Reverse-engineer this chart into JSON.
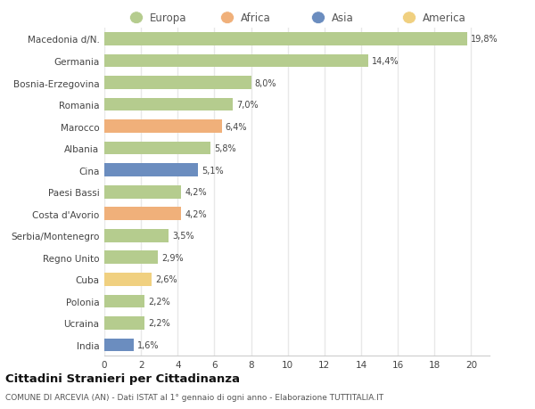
{
  "categories": [
    "Macedonia d/N.",
    "Germania",
    "Bosnia-Erzegovina",
    "Romania",
    "Marocco",
    "Albania",
    "Cina",
    "Paesi Bassi",
    "Costa d'Avorio",
    "Serbia/Montenegro",
    "Regno Unito",
    "Cuba",
    "Polonia",
    "Ucraina",
    "India"
  ],
  "values": [
    19.8,
    14.4,
    8.0,
    7.0,
    6.4,
    5.8,
    5.1,
    4.2,
    4.2,
    3.5,
    2.9,
    2.6,
    2.2,
    2.2,
    1.6
  ],
  "labels": [
    "19,8%",
    "14,4%",
    "8,0%",
    "7,0%",
    "6,4%",
    "5,8%",
    "5,1%",
    "4,2%",
    "4,2%",
    "3,5%",
    "2,9%",
    "2,6%",
    "2,2%",
    "2,2%",
    "1,6%"
  ],
  "colors": [
    "#b5cc8e",
    "#b5cc8e",
    "#b5cc8e",
    "#b5cc8e",
    "#f0b07a",
    "#b5cc8e",
    "#6b8dbf",
    "#b5cc8e",
    "#f0b07a",
    "#b5cc8e",
    "#b5cc8e",
    "#f0d080",
    "#b5cc8e",
    "#b5cc8e",
    "#6b8dbf"
  ],
  "legend_colors": {
    "Europa": "#b5cc8e",
    "Africa": "#f0b07a",
    "Asia": "#6b8dbf",
    "America": "#f0d080"
  },
  "xlim": [
    0,
    21
  ],
  "xticks": [
    0,
    2,
    4,
    6,
    8,
    10,
    12,
    14,
    16,
    18,
    20
  ],
  "title": "Cittadini Stranieri per Cittadinanza",
  "subtitle": "COMUNE DI ARCEVIA (AN) - Dati ISTAT al 1° gennaio di ogni anno - Elaborazione TUTTITALIA.IT",
  "bg_color": "#ffffff",
  "grid_color": "#e8e8e8",
  "bar_height": 0.6
}
